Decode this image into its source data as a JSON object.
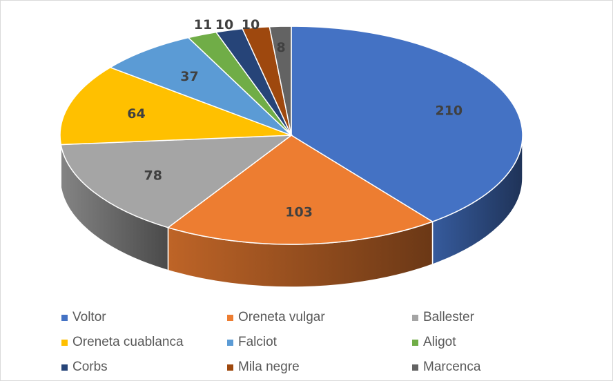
{
  "chart_data": {
    "type": "pie",
    "style": "3d",
    "title": "",
    "categories": [
      "Voltor",
      "Oreneta vulgar",
      "Ballester",
      "Oreneta cuablanca",
      "Falciot",
      "Aligot",
      "Corbs",
      "Mila negre",
      "Marcenca"
    ],
    "values": [
      210,
      103,
      78,
      64,
      37,
      11,
      10,
      10,
      8
    ],
    "colors": [
      "#4472c4",
      "#ed7d31",
      "#a5a5a5",
      "#ffc000",
      "#5b9bd5",
      "#70ad47",
      "#264478",
      "#9e480e",
      "#636363"
    ],
    "legend_position": "bottom",
    "data_labels": true
  }
}
